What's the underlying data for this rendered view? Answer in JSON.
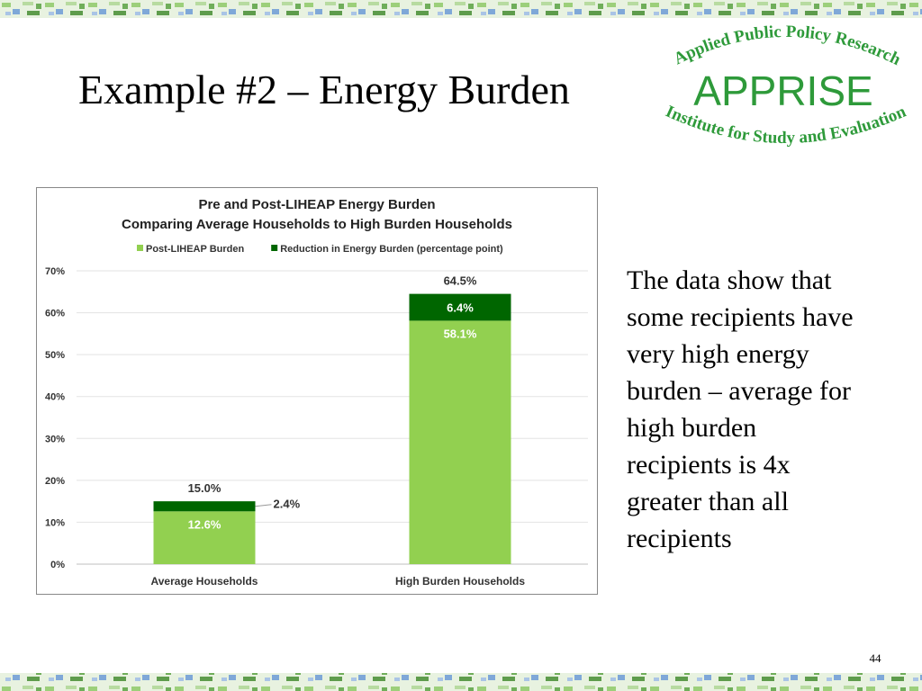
{
  "title": "Example #2 – Energy Burden",
  "logo": {
    "top": "Applied Public Policy Research",
    "name": "APPRISE",
    "bottom": "Institute for Study and Evaluation"
  },
  "text_lines": [
    "The data show that",
    "some recipients have",
    "very high energy",
    "burden – average for",
    "high burden",
    "recipients is 4x",
    "greater than all",
    "recipients"
  ],
  "page_number": "44",
  "chart_data": {
    "type": "stacked_bar",
    "title": "Pre and Post-LIHEAP Energy Burden",
    "subtitle": "Comparing Average Households to High Burden Households",
    "categories": [
      "Average Households",
      "High Burden Households"
    ],
    "series": [
      {
        "name": "Post-LIHEAP Burden",
        "color": "#92d050",
        "values": [
          12.6,
          58.1
        ],
        "value_labels": [
          "12.6%",
          "58.1%"
        ]
      },
      {
        "name": "Reduction in Energy Burden (percentage point)",
        "color": "#006600",
        "values": [
          2.4,
          6.4
        ],
        "value_labels": [
          "2.4%",
          "6.4%"
        ]
      }
    ],
    "totals": [
      15.0,
      64.5
    ],
    "total_labels": [
      "15.0%",
      "64.5%"
    ],
    "ylim": [
      0,
      70
    ],
    "yticks": [
      {
        "value": 0,
        "label": "0%"
      },
      {
        "value": 10,
        "label": "10%"
      },
      {
        "value": 20,
        "label": "20%"
      },
      {
        "value": 30,
        "label": "30%"
      },
      {
        "value": 40,
        "label": "40%"
      },
      {
        "value": 50,
        "label": "50%"
      },
      {
        "value": 60,
        "label": "60%"
      },
      {
        "value": 70,
        "label": "70%"
      }
    ],
    "grid": true,
    "legend": "top"
  }
}
